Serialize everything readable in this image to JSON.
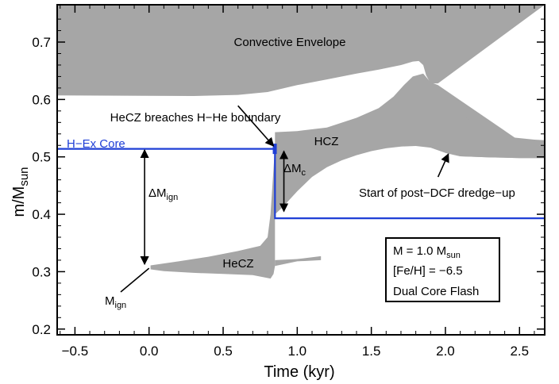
{
  "chart_data": {
    "type": "area",
    "xlabel": "Time (kyr)",
    "ylabel": {
      "main": "m/M",
      "sub": "sun"
    },
    "xlim": [
      -0.62,
      2.67
    ],
    "ylim": [
      0.19,
      0.765
    ],
    "xticks": [
      -0.5,
      0.0,
      0.5,
      1.0,
      1.5,
      2.0,
      2.5
    ],
    "xtick_labels": [
      "−0.5",
      "0.0",
      "0.5",
      "1.0",
      "1.5",
      "2.0",
      "2.5"
    ],
    "yticks": [
      0.2,
      0.3,
      0.4,
      0.5,
      0.6,
      0.7
    ],
    "ytick_labels": [
      "0.2",
      "0.3",
      "0.4",
      "0.5",
      "0.6",
      "0.7"
    ],
    "grid": false,
    "colors": {
      "convective": "#a6a6a6",
      "h_ex_core": "#1f3fd6",
      "axis": "#000000",
      "background": "#ffffff"
    },
    "regions": {
      "convective_envelope": {
        "top": [
          [
            -0.62,
            0.765
          ],
          [
            2.67,
            0.765
          ]
        ],
        "bottom": [
          [
            -0.62,
            0.607
          ],
          [
            0.3,
            0.606
          ],
          [
            0.6,
            0.608
          ],
          [
            0.8,
            0.613
          ],
          [
            1.0,
            0.625
          ],
          [
            1.2,
            0.635
          ],
          [
            1.4,
            0.645
          ],
          [
            1.55,
            0.652
          ],
          [
            1.7,
            0.66
          ],
          [
            1.78,
            0.666
          ],
          [
            1.82,
            0.667
          ],
          [
            1.85,
            0.66
          ],
          [
            1.87,
            0.642
          ],
          [
            1.9,
            0.628
          ],
          [
            1.95,
            0.628
          ]
        ]
      },
      "hcz": {
        "top": [
          [
            0.85,
            0.543
          ],
          [
            1.0,
            0.545
          ],
          [
            1.2,
            0.551
          ],
          [
            1.4,
            0.568
          ],
          [
            1.55,
            0.585
          ],
          [
            1.65,
            0.605
          ],
          [
            1.72,
            0.625
          ],
          [
            1.78,
            0.64
          ],
          [
            1.85,
            0.645
          ],
          [
            1.9,
            0.63
          ],
          [
            1.95,
            0.625
          ]
        ],
        "bottom": [
          [
            0.85,
            0.4
          ],
          [
            0.9,
            0.412
          ],
          [
            1.0,
            0.44
          ],
          [
            1.1,
            0.465
          ],
          [
            1.2,
            0.482
          ],
          [
            1.3,
            0.494
          ],
          [
            1.4,
            0.503
          ],
          [
            1.5,
            0.51
          ],
          [
            1.6,
            0.515
          ],
          [
            1.7,
            0.518
          ],
          [
            1.8,
            0.519
          ],
          [
            1.9,
            0.516
          ],
          [
            2.0,
            0.507
          ],
          [
            2.1,
            0.501
          ],
          [
            2.3,
            0.499
          ],
          [
            2.5,
            0.498
          ],
          [
            2.67,
            0.498
          ]
        ],
        "tail_top": [
          [
            1.95,
            0.625
          ],
          [
            2.0,
            0.61
          ],
          [
            2.05,
            0.594
          ],
          [
            2.1,
            0.578
          ],
          [
            2.15,
            0.566
          ],
          [
            2.2,
            0.555
          ],
          [
            2.3,
            0.543
          ],
          [
            2.45,
            0.534
          ],
          [
            2.6,
            0.53
          ],
          [
            2.67,
            0.529
          ]
        ]
      },
      "hecz": {
        "top": [
          [
            0.01,
            0.311
          ],
          [
            0.2,
            0.318
          ],
          [
            0.4,
            0.326
          ],
          [
            0.6,
            0.336
          ],
          [
            0.75,
            0.345
          ],
          [
            0.8,
            0.36
          ],
          [
            0.82,
            0.4
          ],
          [
            0.84,
            0.48
          ],
          [
            0.85,
            0.52
          ]
        ],
        "bottom": [
          [
            0.85,
            0.31
          ],
          [
            0.84,
            0.296
          ],
          [
            0.82,
            0.288
          ],
          [
            0.7,
            0.294
          ],
          [
            0.5,
            0.296
          ],
          [
            0.3,
            0.298
          ],
          [
            0.1,
            0.301
          ],
          [
            0.01,
            0.304
          ]
        ],
        "bump": [
          [
            0.85,
            0.32
          ],
          [
            1.0,
            0.322
          ],
          [
            1.1,
            0.325
          ],
          [
            1.16,
            0.327
          ],
          [
            1.16,
            0.32
          ],
          [
            1.0,
            0.318
          ],
          [
            0.85,
            0.31
          ]
        ]
      }
    },
    "series": [
      {
        "name": "H−Ex Core",
        "x": [
          -0.62,
          0.84,
          0.84,
          0.85,
          0.85,
          2.67
        ],
        "y": [
          0.514,
          0.514,
          0.514,
          0.514,
          0.393,
          0.393
        ]
      }
    ],
    "annotations": {
      "convective_envelope": "Convective Envelope",
      "hecz_breach": "HeCZ breaches H−He boundary",
      "hcz": "HCZ",
      "hecz": "HeCZ",
      "h_ex_core": "H−Ex Core",
      "dredge_up": "Start of post−DCF dredge−up",
      "m_ign": {
        "main": "M",
        "sub": "ign"
      },
      "delta_m_ign": {
        "main": "ΔM",
        "sub": "ign"
      },
      "delta_m_c": {
        "main": "ΔM",
        "sub": "c"
      }
    },
    "infobox": {
      "mass": {
        "main": "M = 1.0 M",
        "sub": "sun"
      },
      "metallicity": "[Fe/H] = −6.5",
      "scenario": "Dual Core Flash"
    }
  }
}
